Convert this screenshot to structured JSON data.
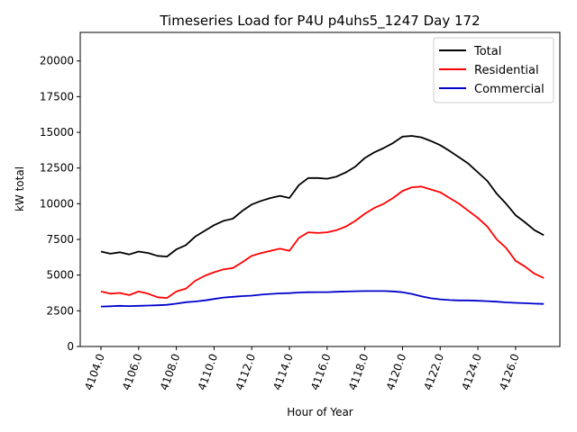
{
  "chart_data": {
    "type": "line",
    "title": "Timeseries Load for P4U p4uhs5_1247  Day 172",
    "xlabel": "Hour of Year",
    "ylabel": "kW total",
    "xlim": [
      4102.9,
      4128.35
    ],
    "ylim": [
      0,
      22000
    ],
    "xticks": [
      4104,
      4106,
      4108,
      4110,
      4112,
      4114,
      4116,
      4118,
      4120,
      4122,
      4124,
      4126
    ],
    "xtick_labels": [
      "4104.0",
      "4106.0",
      "4108.0",
      "4110.0",
      "4112.0",
      "4114.0",
      "4116.0",
      "4118.0",
      "4120.0",
      "4122.0",
      "4124.0",
      "4126.0"
    ],
    "yticks": [
      0,
      2500,
      5000,
      7500,
      10000,
      12500,
      15000,
      17500,
      20000
    ],
    "ytick_labels": [
      "0",
      "2500",
      "5000",
      "7500",
      "10000",
      "12500",
      "15000",
      "17500",
      "20000"
    ],
    "legend_position": "top-right",
    "grid": false,
    "x": [
      4104,
      4104.5,
      4105,
      4105.5,
      4106,
      4106.5,
      4107,
      4107.5,
      4108,
      4108.5,
      4109,
      4109.5,
      4110,
      4110.5,
      4111,
      4111.5,
      4112,
      4112.5,
      4113,
      4113.5,
      4114,
      4114.5,
      4115,
      4115.5,
      4116,
      4116.5,
      4117,
      4117.5,
      4118,
      4118.5,
      4119,
      4119.5,
      4120,
      4120.5,
      4121,
      4121.5,
      4122,
      4122.5,
      4123,
      4123.5,
      4124,
      4124.5,
      4125,
      4125.5,
      4126,
      4126.5,
      4127,
      4127.5
    ],
    "series": [
      {
        "name": "Total",
        "color": "#000000",
        "values": [
          6650,
          6500,
          6600,
          6450,
          6650,
          6550,
          6350,
          6300,
          6800,
          7100,
          7700,
          8100,
          8500,
          8800,
          8950,
          9500,
          9950,
          10200,
          10400,
          10550,
          10400,
          11300,
          11800,
          11800,
          11750,
          11900,
          12200,
          12600,
          13200,
          13600,
          13900,
          14250,
          14700,
          14750,
          14650,
          14400,
          14100,
          13700,
          13250,
          12800,
          12200,
          11600,
          10700,
          10000,
          9200,
          8700,
          8150,
          7800
        ]
      },
      {
        "name": "Residential",
        "color": "#ff0000",
        "values": [
          3850,
          3700,
          3750,
          3600,
          3850,
          3700,
          3450,
          3400,
          3850,
          4050,
          4600,
          4950,
          5200,
          5400,
          5500,
          5900,
          6350,
          6550,
          6700,
          6850,
          6700,
          7600,
          8000,
          7950,
          8000,
          8150,
          8400,
          8800,
          9300,
          9700,
          10000,
          10400,
          10900,
          11150,
          11200,
          11000,
          10800,
          10400,
          10000,
          9500,
          9000,
          8400,
          7500,
          6900,
          6000,
          5600,
          5100,
          4800
        ]
      },
      {
        "name": "Commercial",
        "color": "#0000cc",
        "values": [
          2800,
          2820,
          2850,
          2830,
          2850,
          2870,
          2890,
          2920,
          3000,
          3100,
          3150,
          3230,
          3330,
          3430,
          3480,
          3530,
          3560,
          3630,
          3680,
          3720,
          3740,
          3780,
          3800,
          3810,
          3810,
          3830,
          3850,
          3870,
          3880,
          3880,
          3880,
          3860,
          3800,
          3680,
          3520,
          3380,
          3300,
          3250,
          3230,
          3230,
          3200,
          3180,
          3140,
          3090,
          3060,
          3030,
          3000,
          2980
        ]
      }
    ]
  }
}
